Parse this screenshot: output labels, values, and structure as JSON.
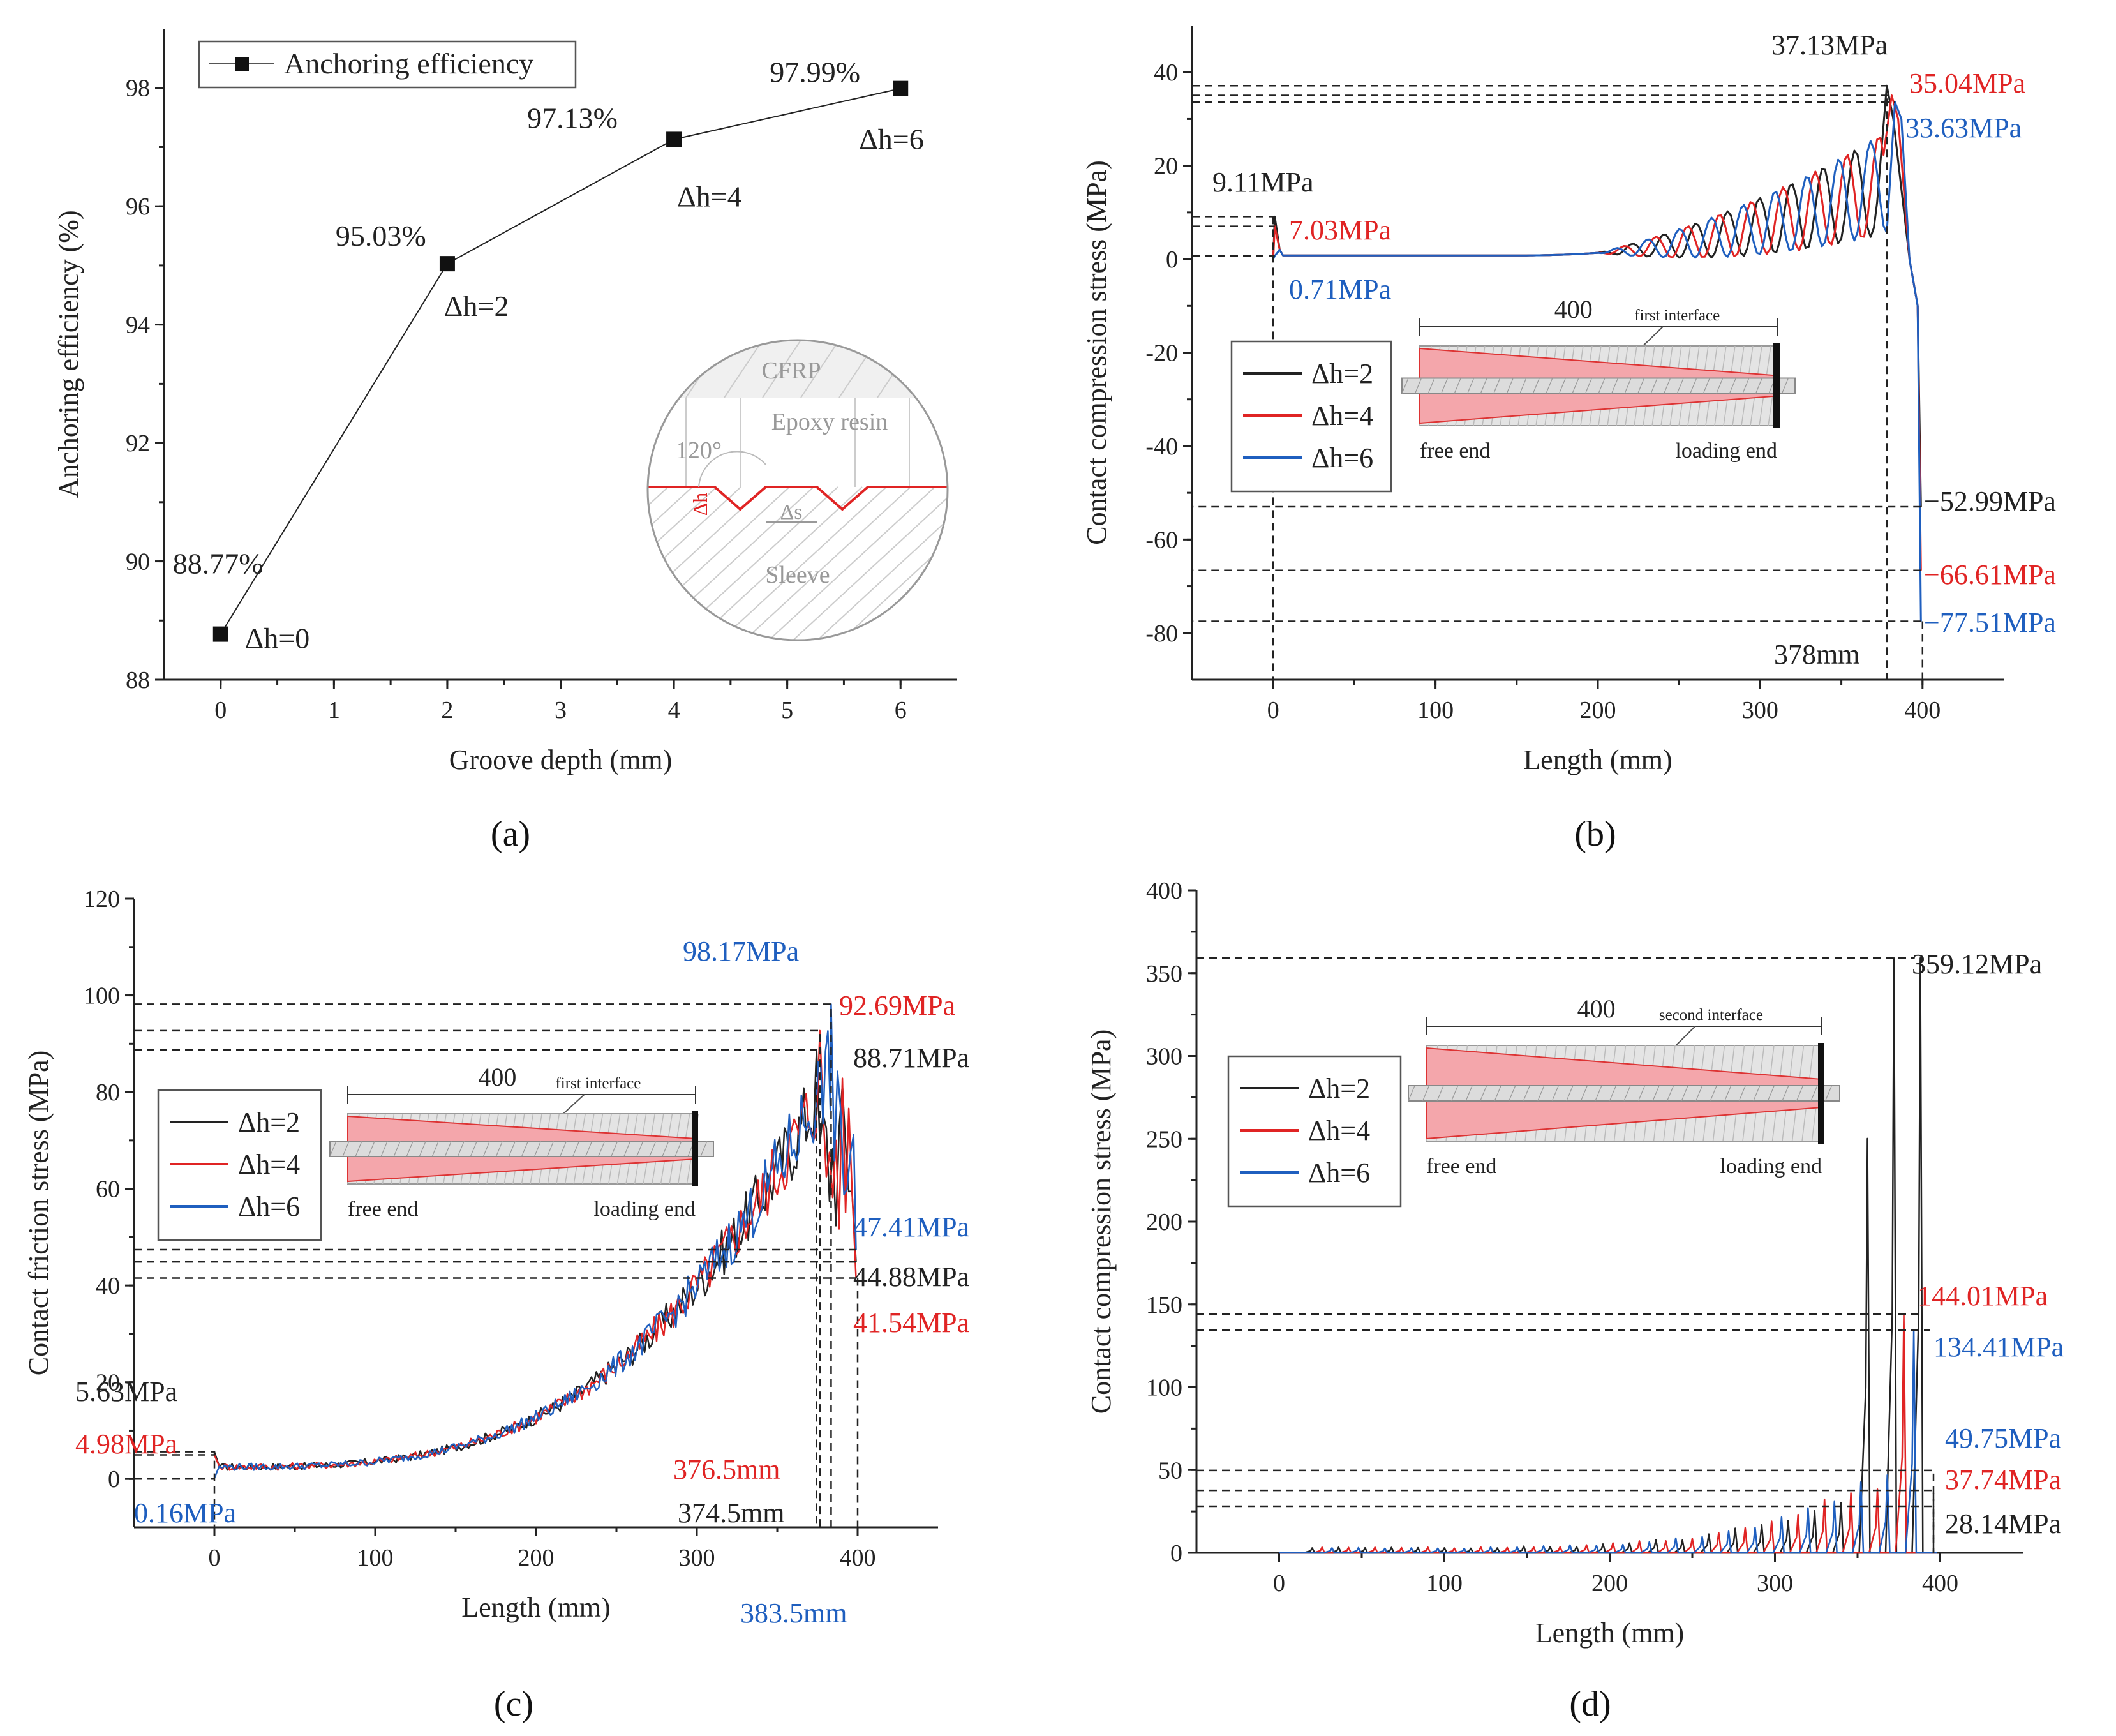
{
  "colors": {
    "black": "#222222",
    "red": "#e02424",
    "blue": "#1f5fbf",
    "pink": "#f4a6ab",
    "grey": "#cfcfcf"
  },
  "chart_data": [
    {
      "id": "a",
      "type": "line",
      "panel_label": "(a)",
      "title": "",
      "xlabel": "Groove depth (mm)",
      "ylabel": "Anchoring efficiency (%)",
      "xlim": [
        -0.5,
        6.5
      ],
      "ylim": [
        88,
        99
      ],
      "xticks": [
        0,
        1,
        2,
        3,
        4,
        5,
        6
      ],
      "yticks": [
        88,
        90,
        92,
        94,
        96,
        98
      ],
      "legend": [
        "Anchoring efficiency"
      ],
      "series": [
        {
          "name": "Anchoring efficiency",
          "color": "black",
          "x": [
            0,
            2,
            4,
            6
          ],
          "y": [
            88.77,
            95.03,
            97.13,
            97.99
          ]
        }
      ],
      "value_labels": [
        "88.77%",
        "95.03%",
        "97.13%",
        "97.99%"
      ],
      "depth_labels": [
        "Δh=0",
        "Δh=2",
        "Δh=4",
        "Δh=6"
      ],
      "inset": {
        "cfrp": "CFRP",
        "epoxy": "Epoxy resin",
        "angle": "120°",
        "dh": "Δh",
        "ds": "Δs",
        "sleeve": "Sleeve"
      }
    },
    {
      "id": "b",
      "type": "line",
      "panel_label": "(b)",
      "xlabel": "Length (mm)",
      "ylabel": "Contact compression stress (MPa)",
      "xlim": [
        -50,
        450
      ],
      "ylim": [
        -90,
        50
      ],
      "xticks": [
        0,
        100,
        200,
        300,
        400
      ],
      "yticks": [
        -80,
        -60,
        -40,
        -20,
        0,
        20,
        40
      ],
      "legend": [
        "Δh=2",
        "Δh=4",
        "Δh=6"
      ],
      "series": [
        {
          "name": "Δh=2",
          "color": "black",
          "start": 9.11,
          "peak": 37.13,
          "peak_x": 378,
          "end": -52.99
        },
        {
          "name": "Δh=4",
          "color": "red",
          "start": 7.03,
          "peak": 35.04,
          "peak_x": 381,
          "end": -66.61
        },
        {
          "name": "Δh=6",
          "color": "blue",
          "start": 0.71,
          "peak": 33.63,
          "peak_x": 383,
          "end": -77.51
        }
      ],
      "annotations": [
        {
          "text": "37.13MPa",
          "color": "black"
        },
        {
          "text": "35.04MPa",
          "color": "red"
        },
        {
          "text": "33.63MPa",
          "color": "blue"
        },
        {
          "text": "9.11MPa",
          "color": "black"
        },
        {
          "text": "7.03MPa",
          "color": "red"
        },
        {
          "text": "0.71MPa",
          "color": "blue"
        },
        {
          "text": "−52.99MPa",
          "color": "black"
        },
        {
          "text": "−66.61MPa",
          "color": "red"
        },
        {
          "text": "−77.51MPa",
          "color": "blue"
        },
        {
          "text": "378mm",
          "color": "black"
        }
      ],
      "inset": {
        "length": "400",
        "interface": "first interface",
        "free_end": "free end",
        "loading_end": "loading end"
      }
    },
    {
      "id": "c",
      "type": "line",
      "panel_label": "(c)",
      "xlabel": "Length (mm)",
      "ylabel": "Contact friction stress (MPa)",
      "xlim": [
        -50,
        450
      ],
      "ylim": [
        -10,
        120
      ],
      "xticks": [
        0,
        100,
        200,
        300,
        400
      ],
      "yticks": [
        0,
        20,
        40,
        60,
        80,
        100,
        120
      ],
      "legend": [
        "Δh=2",
        "Δh=4",
        "Δh=6"
      ],
      "series": [
        {
          "name": "Δh=2",
          "color": "black",
          "start": 5.63,
          "peak": 88.71,
          "peak_x": 374.5,
          "end": 44.88
        },
        {
          "name": "Δh=4",
          "color": "red",
          "start": 4.98,
          "peak": 92.69,
          "peak_x": 376.5,
          "end": 41.54
        },
        {
          "name": "Δh=6",
          "color": "blue",
          "start": 0.16,
          "peak": 98.17,
          "peak_x": 383.5,
          "end": 47.41
        }
      ],
      "annotations": [
        {
          "text": "98.17MPa",
          "color": "blue"
        },
        {
          "text": "92.69MPa",
          "color": "red"
        },
        {
          "text": "88.71MPa",
          "color": "black"
        },
        {
          "text": "47.41MPa",
          "color": "blue"
        },
        {
          "text": "44.88MPa",
          "color": "black"
        },
        {
          "text": "41.54MPa",
          "color": "red"
        },
        {
          "text": "5.63MPa",
          "color": "black"
        },
        {
          "text": "4.98MPa",
          "color": "red"
        },
        {
          "text": "0.16MPa",
          "color": "blue"
        },
        {
          "text": "376.5mm",
          "color": "red"
        },
        {
          "text": "374.5mm",
          "color": "black"
        },
        {
          "text": "383.5mm",
          "color": "blue"
        }
      ],
      "inset": {
        "length": "400",
        "interface": "first interface",
        "free_end": "free end",
        "loading_end": "loading end"
      }
    },
    {
      "id": "d",
      "type": "line",
      "panel_label": "(d)",
      "xlabel": "Length (mm)",
      "ylabel": "Contact compression stress (MPa)",
      "xlim": [
        -50,
        450
      ],
      "ylim": [
        0,
        400
      ],
      "xticks": [
        0,
        100,
        200,
        300,
        400
      ],
      "yticks": [
        0,
        50,
        100,
        150,
        200,
        250,
        300,
        350,
        400
      ],
      "legend": [
        "Δh=2",
        "Δh=4",
        "Δh=6"
      ],
      "series": [
        {
          "name": "Δh=2",
          "color": "black",
          "peak": 359.12,
          "end": 28.14
        },
        {
          "name": "Δh=4",
          "color": "red",
          "peak": 144.01,
          "end": 37.74
        },
        {
          "name": "Δh=6",
          "color": "blue",
          "peak": 134.41,
          "end": 49.75
        }
      ],
      "annotations": [
        {
          "text": "359.12MPa",
          "color": "black"
        },
        {
          "text": "144.01MPa",
          "color": "red"
        },
        {
          "text": "134.41MPa",
          "color": "blue"
        },
        {
          "text": "49.75MPa",
          "color": "blue"
        },
        {
          "text": "37.74MPa",
          "color": "red"
        },
        {
          "text": "28.14MPa",
          "color": "black"
        }
      ],
      "inset": {
        "length": "400",
        "interface": "second interface",
        "free_end": "free end",
        "loading_end": "loading end"
      }
    }
  ]
}
